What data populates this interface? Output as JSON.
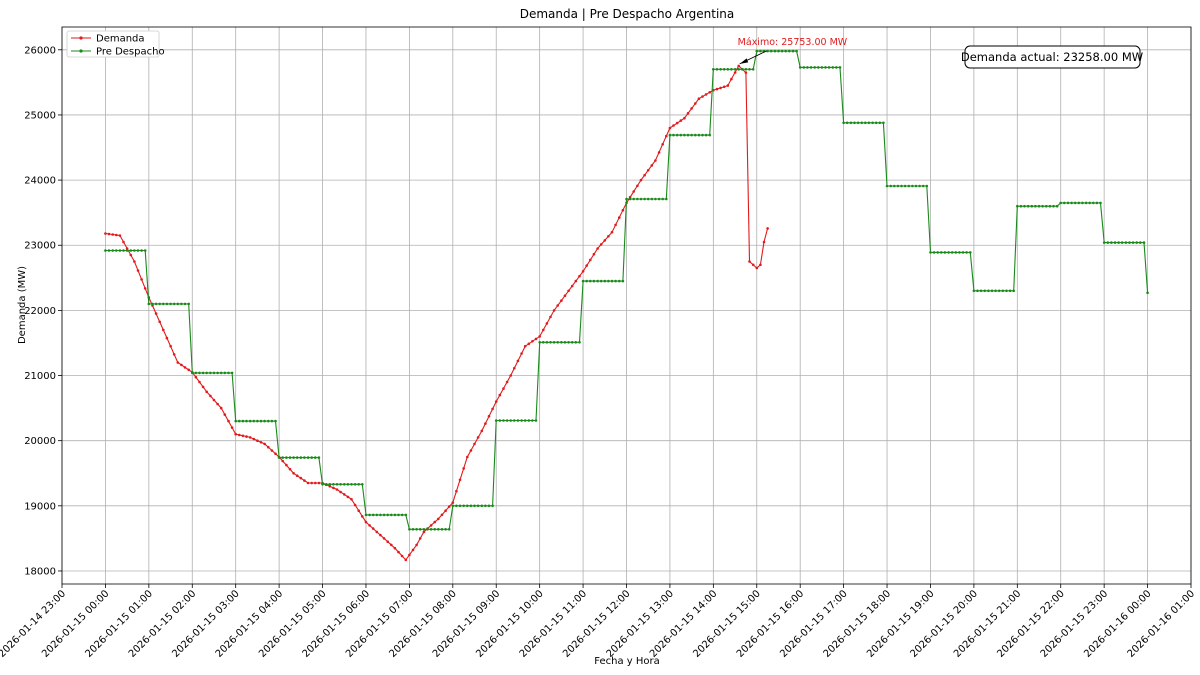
{
  "chart_data": {
    "type": "line",
    "title": "Demanda | Pre Despacho Argentina",
    "xlabel": "Fecha y Hora",
    "ylabel": "Demanda (MW)",
    "xlim": [
      "2026-01-14 23:00",
      "2026-01-16 01:00"
    ],
    "ylim": [
      17800,
      26350
    ],
    "yticks": [
      18000,
      19000,
      20000,
      21000,
      22000,
      23000,
      24000,
      25000,
      26000
    ],
    "xticks": [
      "2026-01-14 23:00",
      "2026-01-15 00:00",
      "2026-01-15 01:00",
      "2026-01-15 02:00",
      "2026-01-15 03:00",
      "2026-01-15 04:00",
      "2026-01-15 05:00",
      "2026-01-15 06:00",
      "2026-01-15 07:00",
      "2026-01-15 08:00",
      "2026-01-15 09:00",
      "2026-01-15 10:00",
      "2026-01-15 11:00",
      "2026-01-15 12:00",
      "2026-01-15 13:00",
      "2026-01-15 14:00",
      "2026-01-15 15:00",
      "2026-01-15 16:00",
      "2026-01-15 17:00",
      "2026-01-15 18:00",
      "2026-01-15 19:00",
      "2026-01-15 20:00",
      "2026-01-15 21:00",
      "2026-01-15 22:00",
      "2026-01-15 23:00",
      "2026-01-16 00:00",
      "2026-01-16 01:00"
    ],
    "grid": true,
    "legend": "top-left",
    "series": [
      {
        "name": "Demanda",
        "color": "#e31a1c",
        "marker": "dot",
        "x": [
          "2026-01-15 00:00",
          "2026-01-15 00:20",
          "2026-01-15 00:40",
          "2026-01-15 01:00",
          "2026-01-15 01:20",
          "2026-01-15 01:40",
          "2026-01-15 02:00",
          "2026-01-15 02:20",
          "2026-01-15 02:40",
          "2026-01-15 03:00",
          "2026-01-15 03:20",
          "2026-01-15 03:40",
          "2026-01-15 04:00",
          "2026-01-15 04:20",
          "2026-01-15 04:40",
          "2026-01-15 05:00",
          "2026-01-15 05:20",
          "2026-01-15 05:40",
          "2026-01-15 06:00",
          "2026-01-15 06:20",
          "2026-01-15 06:40",
          "2026-01-15 06:55",
          "2026-01-15 07:10",
          "2026-01-15 07:20",
          "2026-01-15 07:40",
          "2026-01-15 08:00",
          "2026-01-15 08:20",
          "2026-01-15 08:40",
          "2026-01-15 09:00",
          "2026-01-15 09:20",
          "2026-01-15 09:40",
          "2026-01-15 10:00",
          "2026-01-15 10:20",
          "2026-01-15 10:40",
          "2026-01-15 11:00",
          "2026-01-15 11:20",
          "2026-01-15 11:40",
          "2026-01-15 12:00",
          "2026-01-15 12:20",
          "2026-01-15 12:40",
          "2026-01-15 13:00",
          "2026-01-15 13:20",
          "2026-01-15 13:40",
          "2026-01-15 14:00",
          "2026-01-15 14:20",
          "2026-01-15 14:35",
          "2026-01-15 14:45",
          "2026-01-15 14:50",
          "2026-01-15 15:00",
          "2026-01-15 15:05",
          "2026-01-15 15:10",
          "2026-01-15 15:15"
        ],
        "values": [
          23180,
          23150,
          22750,
          22200,
          21700,
          21200,
          21050,
          20750,
          20500,
          20100,
          20050,
          19950,
          19750,
          19500,
          19350,
          19350,
          19250,
          19100,
          18750,
          18550,
          18350,
          18170,
          18400,
          18600,
          18800,
          19050,
          19750,
          20150,
          20600,
          21000,
          21450,
          21600,
          22000,
          22300,
          22600,
          22950,
          23200,
          23650,
          24000,
          24300,
          24800,
          24950,
          25250,
          25380,
          25450,
          25753,
          25650,
          22750,
          22650,
          22700,
          23050,
          23258
        ]
      },
      {
        "name": "Pre Despacho",
        "color": "#1a8a1a",
        "marker": "dot",
        "x": [
          "2026-01-15 00:00",
          "2026-01-15 00:55",
          "2026-01-15 01:00",
          "2026-01-15 01:55",
          "2026-01-15 02:00",
          "2026-01-15 02:55",
          "2026-01-15 03:00",
          "2026-01-15 03:55",
          "2026-01-15 04:00",
          "2026-01-15 04:55",
          "2026-01-15 05:00",
          "2026-01-15 05:55",
          "2026-01-15 06:00",
          "2026-01-15 06:55",
          "2026-01-15 07:00",
          "2026-01-15 07:55",
          "2026-01-15 08:00",
          "2026-01-15 08:55",
          "2026-01-15 09:00",
          "2026-01-15 09:55",
          "2026-01-15 10:00",
          "2026-01-15 10:55",
          "2026-01-15 11:00",
          "2026-01-15 11:55",
          "2026-01-15 12:00",
          "2026-01-15 12:55",
          "2026-01-15 13:00",
          "2026-01-15 13:55",
          "2026-01-15 14:00",
          "2026-01-15 14:55",
          "2026-01-15 15:00",
          "2026-01-15 15:55",
          "2026-01-15 16:00",
          "2026-01-15 16:55",
          "2026-01-15 17:00",
          "2026-01-15 17:55",
          "2026-01-15 18:00",
          "2026-01-15 18:55",
          "2026-01-15 19:00",
          "2026-01-15 19:55",
          "2026-01-15 20:00",
          "2026-01-15 20:55",
          "2026-01-15 21:00",
          "2026-01-15 21:55",
          "2026-01-15 22:00",
          "2026-01-15 22:55",
          "2026-01-15 23:00",
          "2026-01-15 23:55",
          "2026-01-16 00:00"
        ],
        "values": [
          22920,
          22920,
          22100,
          22100,
          21040,
          21040,
          20300,
          20300,
          19740,
          19740,
          19330,
          19330,
          18860,
          18860,
          18640,
          18640,
          19000,
          19000,
          20310,
          20310,
          21510,
          21510,
          22450,
          22450,
          23710,
          23710,
          24690,
          24690,
          25700,
          25700,
          25980,
          25980,
          25730,
          25730,
          24880,
          24880,
          23910,
          23910,
          22890,
          22890,
          22300,
          22300,
          23600,
          23600,
          23650,
          23650,
          23040,
          23040,
          22270
        ]
      }
    ],
    "annotations": [
      {
        "text": "Máximo: 25753.00 MW",
        "color": "#e31a1c",
        "x": "2026-01-15 14:35",
        "y": 25753
      },
      {
        "text": "Demanda actual: 23258.00 MW",
        "color": "#000000",
        "box": true,
        "position": "top-right"
      }
    ]
  }
}
